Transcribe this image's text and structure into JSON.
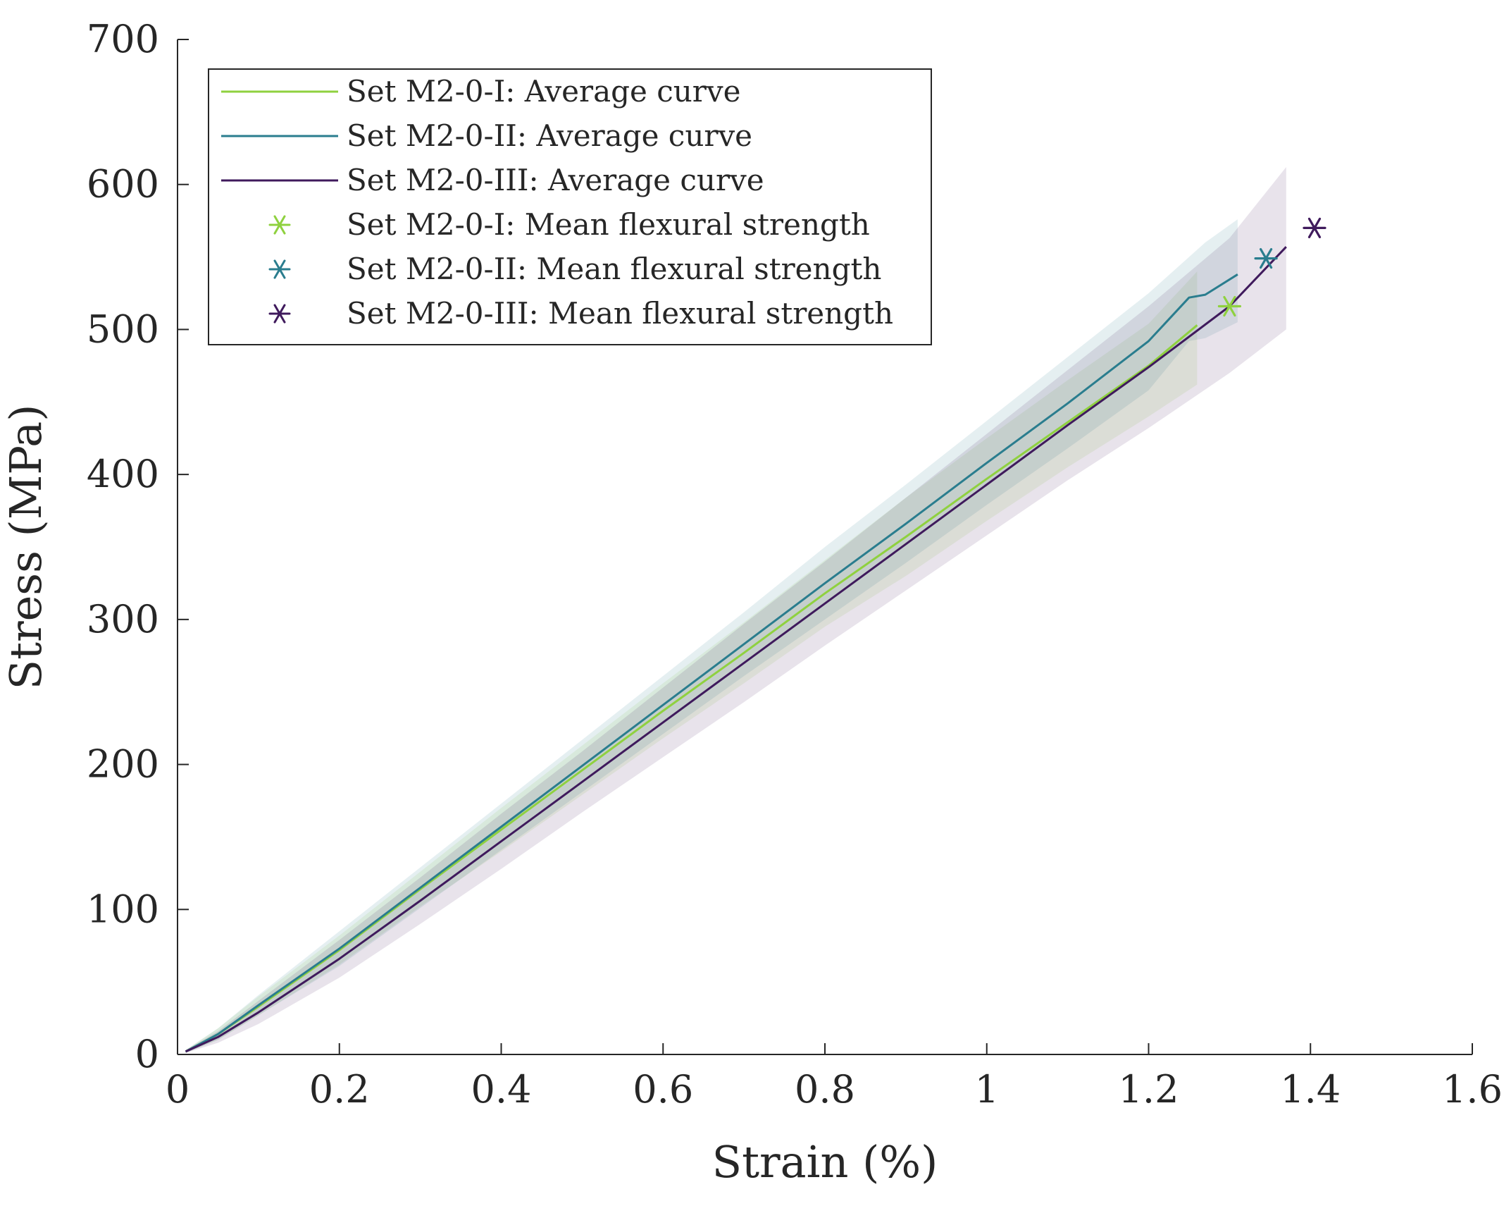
{
  "chart_data": {
    "type": "line",
    "title": "",
    "xlabel": "Strain (%)",
    "ylabel": "Stress (MPa)",
    "xlim": [
      0,
      1.6
    ],
    "ylim": [
      0,
      700
    ],
    "x_ticks": [
      0,
      0.2,
      0.4,
      0.6,
      0.8,
      1,
      1.2,
      1.4,
      1.6
    ],
    "x_tick_labels": [
      "0",
      "0.2",
      "0.4",
      "0.6",
      "0.8",
      "1",
      "1.2",
      "1.4",
      "1.6"
    ],
    "y_ticks": [
      0,
      100,
      200,
      300,
      400,
      500,
      600,
      700
    ],
    "y_tick_labels": [
      "0",
      "100",
      "200",
      "300",
      "400",
      "500",
      "600",
      "700"
    ],
    "grid": false,
    "legend_position": "top-left",
    "series": [
      {
        "name": "Set M2-0-I: Average curve",
        "color": "#8fd13f",
        "x": [
          0.01,
          0.05,
          0.1,
          0.2,
          0.3,
          0.4,
          0.5,
          0.6,
          0.7,
          0.8,
          0.9,
          1.0,
          1.1,
          1.2,
          1.26
        ],
        "y": [
          2,
          14,
          33,
          72,
          114,
          155,
          196,
          237,
          277,
          318,
          357,
          397,
          436,
          475,
          503
        ],
        "band_upper": [
          3,
          18,
          40,
          82,
          126,
          170,
          213,
          256,
          298,
          341,
          384,
          425,
          465,
          504,
          540
        ],
        "band_lower": [
          1,
          10,
          27,
          62,
          102,
          140,
          179,
          218,
          256,
          295,
          330,
          368,
          405,
          440,
          462
        ]
      },
      {
        "name": "Set M2-0-II: Average curve",
        "color": "#2a7d8e",
        "x": [
          0.01,
          0.05,
          0.1,
          0.2,
          0.3,
          0.4,
          0.5,
          0.6,
          0.7,
          0.8,
          0.9,
          1.0,
          1.1,
          1.2,
          1.25,
          1.27,
          1.31
        ],
        "y": [
          2,
          14,
          34,
          73,
          115,
          157,
          199,
          241,
          283,
          325,
          366,
          408,
          449,
          492,
          522,
          524,
          538
        ],
        "band_upper": [
          3,
          18,
          41,
          85,
          129,
          173,
          217,
          261,
          305,
          350,
          393,
          437,
          481,
          525,
          550,
          560,
          576
        ],
        "band_lower": [
          1,
          10,
          27,
          61,
          101,
          141,
          181,
          221,
          261,
          300,
          339,
          379,
          418,
          458,
          492,
          494,
          505
        ]
      },
      {
        "name": "Set M2-0-III: Average curve",
        "color": "#3f1a5c",
        "x": [
          0.01,
          0.05,
          0.1,
          0.2,
          0.3,
          0.4,
          0.5,
          0.6,
          0.7,
          0.8,
          0.9,
          1.0,
          1.1,
          1.2,
          1.3,
          1.37
        ],
        "y": [
          2,
          12,
          29,
          66,
          106,
          147,
          188,
          229,
          270,
          311,
          352,
          393,
          434,
          474,
          516,
          557
        ],
        "band_upper": [
          3,
          16,
          37,
          79,
          122,
          166,
          209,
          253,
          297,
          340,
          384,
          428,
          472,
          516,
          563,
          612
        ],
        "band_lower": [
          1,
          8,
          21,
          53,
          90,
          128,
          167,
          205,
          243,
          282,
          320,
          358,
          396,
          432,
          470,
          500
        ]
      }
    ],
    "points": [
      {
        "name": "Set M2-0-I: Mean flexural strength",
        "color": "#8fd13f",
        "x": 1.3,
        "y": 516
      },
      {
        "name": "Set M2-0-II: Mean flexural strength",
        "color": "#2a7d8e",
        "x": 1.345,
        "y": 549
      },
      {
        "name": "Set M2-0-III: Mean flexural strength",
        "color": "#3f1a5c",
        "x": 1.405,
        "y": 570
      }
    ]
  }
}
